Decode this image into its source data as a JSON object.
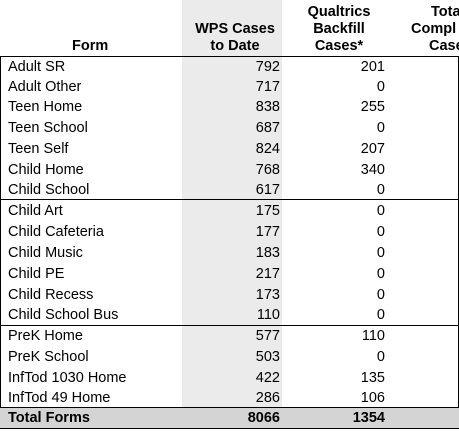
{
  "headers": {
    "form": "Form",
    "wps": [
      "WPS Cases",
      "to Date"
    ],
    "qb": [
      "Qualtrics",
      "Backfill",
      "Cases*"
    ],
    "total": [
      "Tota",
      "Compl",
      "Case"
    ]
  },
  "rows": [
    {
      "form": "Adult SR",
      "wps": "792",
      "qb": "201"
    },
    {
      "form": "Adult Other",
      "wps": "717",
      "qb": "0"
    },
    {
      "form": "Teen Home",
      "wps": "838",
      "qb": "255"
    },
    {
      "form": "Teen School",
      "wps": "687",
      "qb": "0"
    },
    {
      "form": "Teen Self",
      "wps": "824",
      "qb": "207"
    },
    {
      "form": "Child Home",
      "wps": "768",
      "qb": "340"
    },
    {
      "form": "Child School",
      "wps": "617",
      "qb": "0"
    },
    {
      "form": "Child Art",
      "wps": "175",
      "qb": "0"
    },
    {
      "form": "Child Cafeteria",
      "wps": "177",
      "qb": "0"
    },
    {
      "form": "Child Music",
      "wps": "183",
      "qb": "0"
    },
    {
      "form": "Child PE",
      "wps": "217",
      "qb": "0"
    },
    {
      "form": "Child Recess",
      "wps": "173",
      "qb": "0"
    },
    {
      "form": "Child School Bus",
      "wps": "110",
      "qb": "0"
    },
    {
      "form": "PreK Home",
      "wps": "577",
      "qb": "110"
    },
    {
      "form": "PreK School",
      "wps": "503",
      "qb": "0"
    },
    {
      "form": "InfTod 1030 Home",
      "wps": "422",
      "qb": "135"
    },
    {
      "form": "InfTod 49 Home",
      "wps": "286",
      "qb": "106"
    }
  ],
  "total_row": {
    "form": "Total Forms",
    "wps": "8066",
    "qb": "1354"
  }
}
